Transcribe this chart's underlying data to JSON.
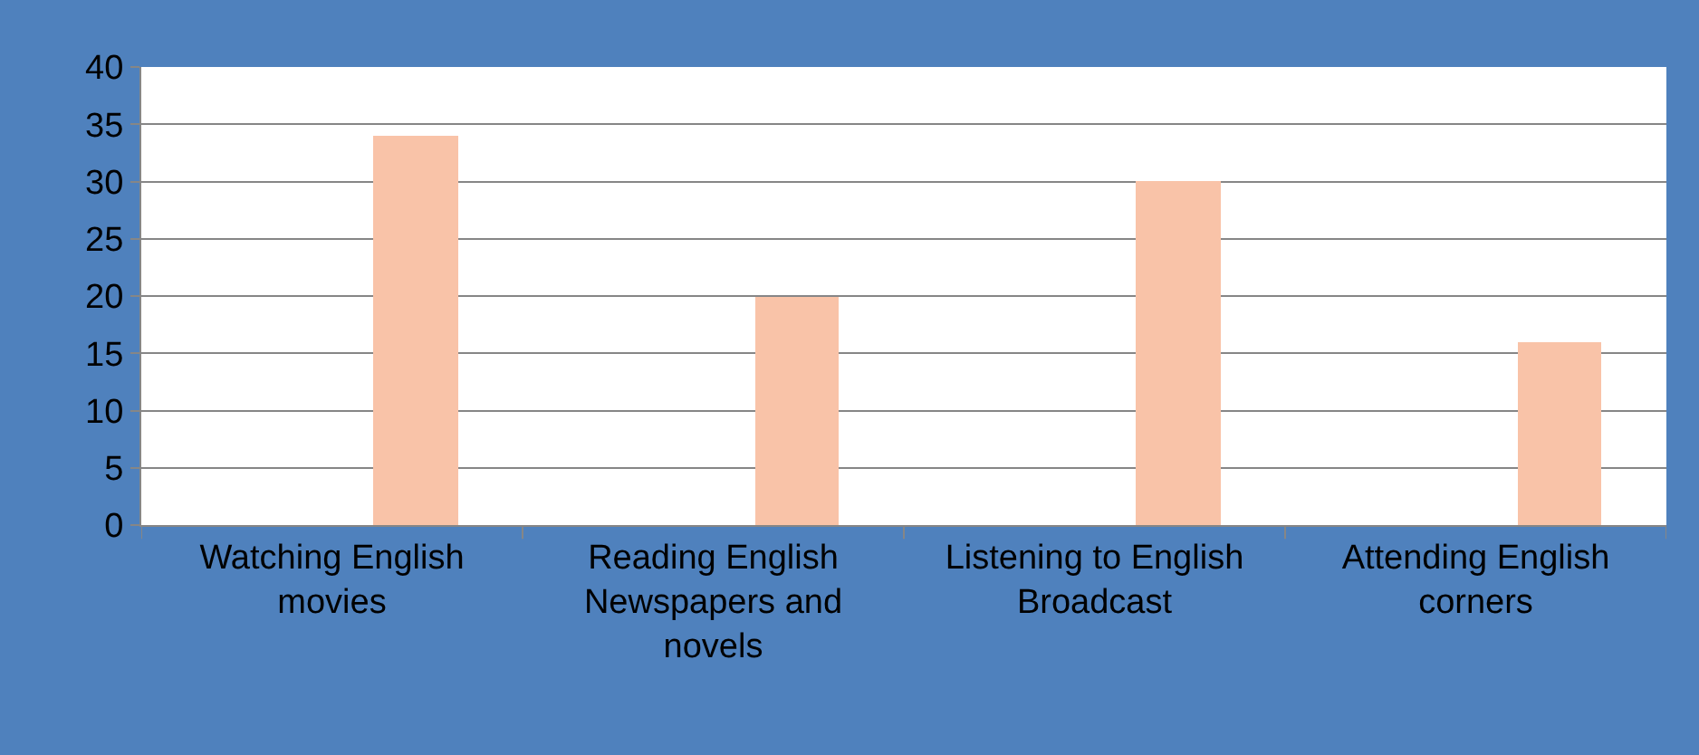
{
  "chart_data": {
    "type": "bar",
    "categories": [
      "Watching English movies",
      "Reading English Newspapers and novels",
      "Listening to English Broadcast",
      "Attending English corners"
    ],
    "values": [
      34,
      20,
      30,
      16
    ],
    "color": "#f9c3a8",
    "ylim": [
      0,
      40
    ],
    "yticks": [
      0,
      5,
      10,
      15,
      20,
      25,
      30,
      35,
      40
    ],
    "grid": "y"
  }
}
